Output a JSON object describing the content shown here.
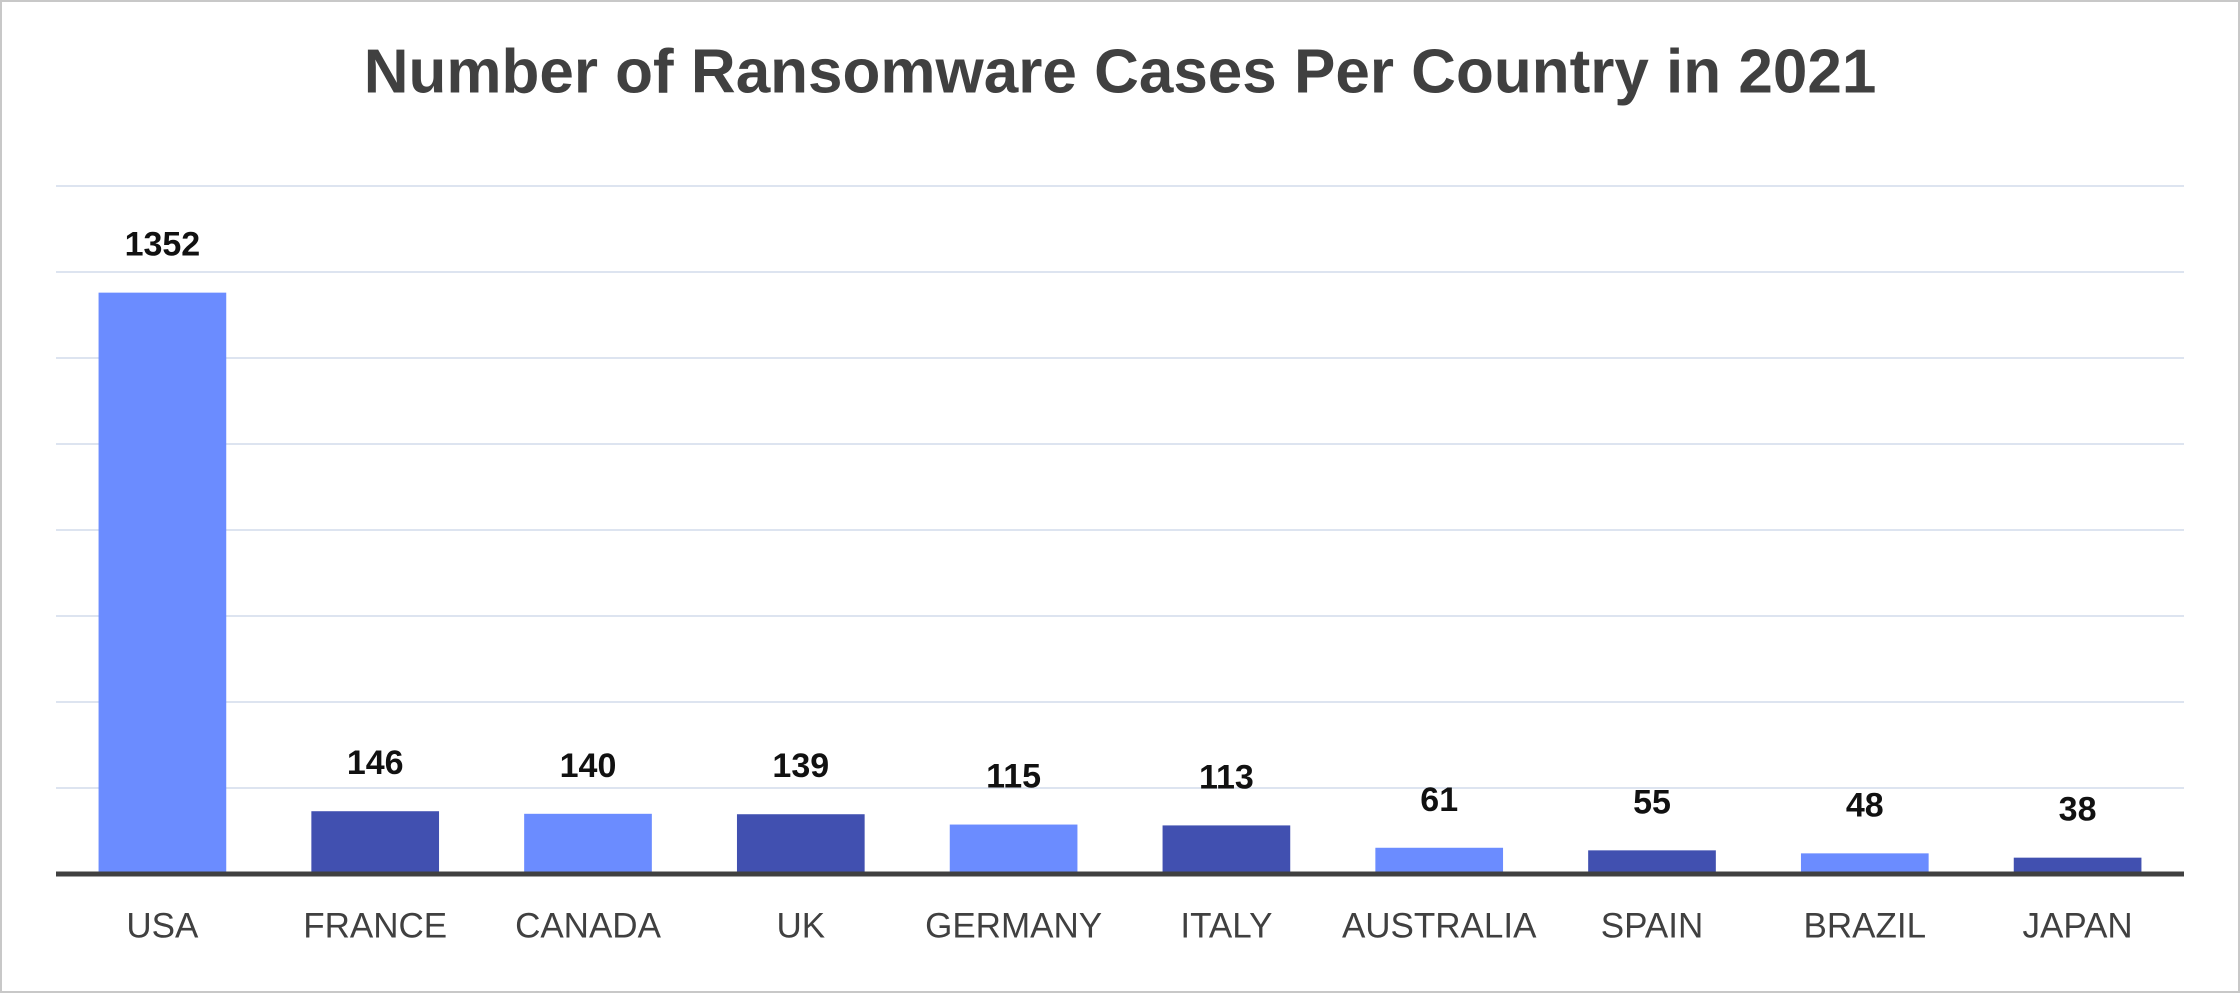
{
  "chart_data": {
    "type": "bar",
    "title": "Number of Ransomware Cases Per Country in 2021",
    "categories": [
      "USA",
      "FRANCE",
      "CANADA",
      "UK",
      "GERMANY",
      "ITALY",
      "AUSTRALIA",
      "SPAIN",
      "BRAZIL",
      "JAPAN"
    ],
    "values": [
      1352,
      146,
      140,
      139,
      115,
      113,
      61,
      55,
      48,
      38
    ],
    "colors": [
      "#6b8cff",
      "#4150b0",
      "#6b8cff",
      "#4150b0",
      "#6b8cff",
      "#4150b0",
      "#6b8cff",
      "#4150b0",
      "#6b8cff",
      "#4150b0"
    ],
    "ylim": [
      0,
      1600
    ],
    "yticks": [
      0,
      200,
      400,
      600,
      800,
      1000,
      1200,
      1400,
      1600
    ],
    "grid": true
  }
}
